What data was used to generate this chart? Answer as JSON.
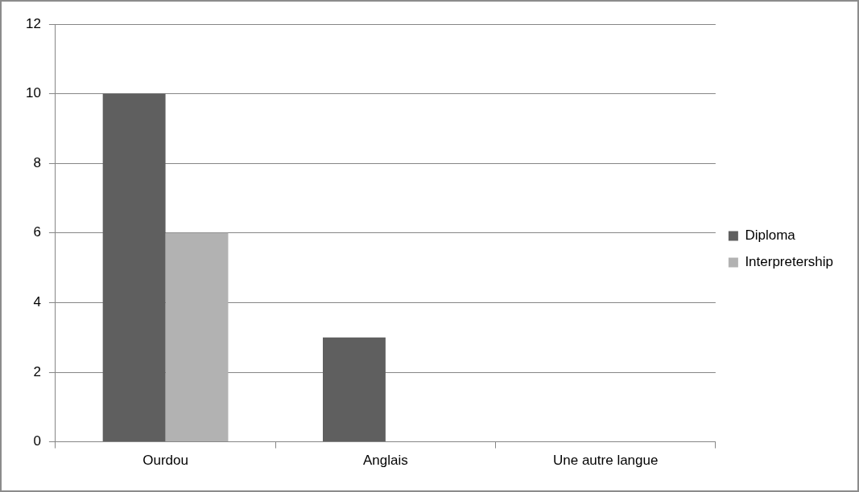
{
  "chart_data": {
    "type": "bar",
    "categories": [
      "Ourdou",
      "Anglais",
      "Une autre langue"
    ],
    "series": [
      {
        "name": "Diploma",
        "color": "#5f5f5f",
        "values": [
          10,
          3,
          0
        ]
      },
      {
        "name": "Interpretership",
        "color": "#b2b2b2",
        "values": [
          6,
          0,
          0
        ]
      }
    ],
    "ylim": [
      0,
      12
    ],
    "yticks": [
      0,
      2,
      4,
      6,
      8,
      10,
      12
    ],
    "grid": "y",
    "legend": "right"
  }
}
